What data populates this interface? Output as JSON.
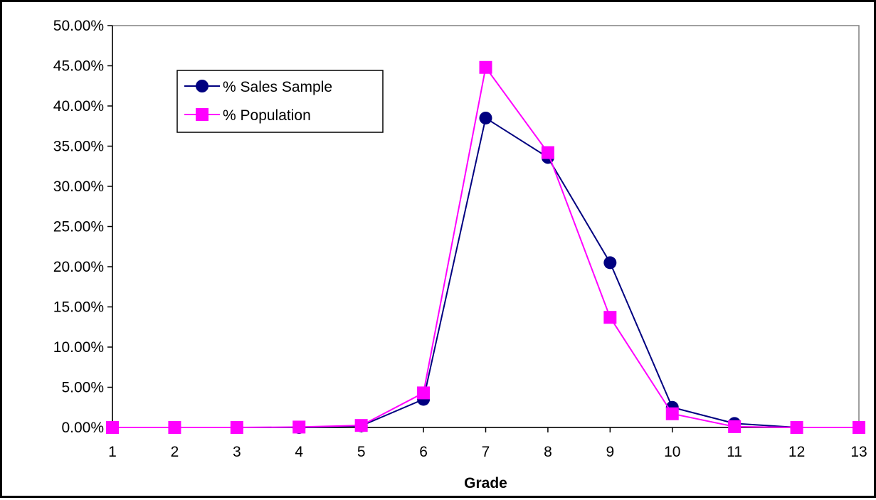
{
  "chart_data": {
    "type": "line",
    "title": "",
    "xlabel": "Grade",
    "ylabel": "",
    "x": [
      "1",
      "2",
      "3",
      "4",
      "5",
      "6",
      "7",
      "8",
      "9",
      "10",
      "11",
      "12",
      "13"
    ],
    "ylim": [
      0,
      0.5
    ],
    "y_ticks": [
      "0.00%",
      "5.00%",
      "10.00%",
      "15.00%",
      "20.00%",
      "25.00%",
      "30.00%",
      "35.00%",
      "40.00%",
      "45.00%",
      "50.00%"
    ],
    "grid": false,
    "legend_position": "top-left",
    "series": [
      {
        "name": "% Sales Sample",
        "color": "#000080",
        "marker": "circle",
        "values": [
          0.0,
          0.0,
          0.0,
          0.0,
          0.002,
          0.035,
          0.385,
          0.336,
          0.205,
          0.025,
          0.005,
          0.0,
          0.0
        ]
      },
      {
        "name": "% Population",
        "color": "#ff00ff",
        "marker": "square",
        "values": [
          0.0,
          0.0,
          0.0,
          0.0005,
          0.0025,
          0.043,
          0.448,
          0.342,
          0.137,
          0.017,
          0.001,
          0.0,
          0.0
        ]
      }
    ]
  }
}
